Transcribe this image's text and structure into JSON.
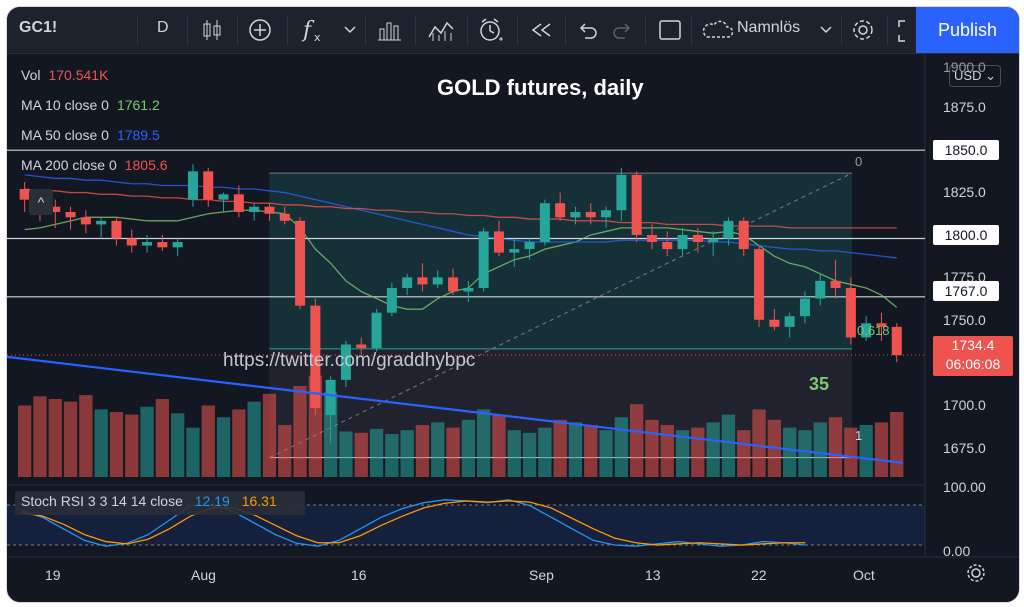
{
  "toolbar": {
    "symbol": "GC1!",
    "interval": "D",
    "layout_name": "Namnlös",
    "publish_label": "Publish",
    "icons": [
      "candles-icon",
      "add-compare-icon",
      "indicators-icon",
      "chevron-down-icon",
      "templates-icon",
      "bar-chart-icon",
      "alert-icon",
      "replay-icon",
      "undo-icon",
      "redo-icon",
      "fullscreen-icon",
      "cloud-icon",
      "settings-icon",
      "screenshot-icon"
    ]
  },
  "legend": {
    "vol": {
      "label": "Vol",
      "value": "170.541K",
      "color": "#ef5350"
    },
    "ma10": {
      "label": "MA 10 close 0",
      "value": "1761.2",
      "color": "#7bc96f"
    },
    "ma50": {
      "label": "MA 50 close 0",
      "value": "1789.5",
      "color": "#2962ff"
    },
    "ma200": {
      "label": "MA 200 close 0",
      "value": "1805.6",
      "color": "#ef5350"
    }
  },
  "title": "GOLD futures, daily",
  "currency": "USD",
  "price_axis": [
    "1900.0",
    "1875.0",
    "1825.0",
    "1775.0",
    "1750.0",
    "1700.0",
    "1675.0"
  ],
  "price_boxes": [
    "1850.0",
    "1800.0",
    "1767.0"
  ],
  "last_price": {
    "value": "1734.4",
    "countdown": "06:06:08"
  },
  "watermark": "https://twitter.com/graddhybpc",
  "count_label": "35",
  "fib": {
    "top": "0",
    "mid": "0.618",
    "bottom": "1"
  },
  "dates": [
    "19",
    "Aug",
    "16",
    "Sep",
    "13",
    "22",
    "Oct"
  ],
  "stoch": {
    "label": "Stoch RSI 3 3 14 14 close",
    "k": "12.19",
    "d": "16.31",
    "axis_top": "100.00",
    "axis_bottom": "0.00"
  },
  "colors": {
    "up": "#26a69a",
    "down": "#ef5350",
    "bg": "#131722",
    "accent": "#2962ff"
  },
  "chart_data": {
    "type": "candlestick",
    "title": "GOLD futures, daily",
    "ylim": [
      1665,
      1905
    ],
    "candles": [
      [
        1828,
        1832,
        1815,
        1822
      ],
      [
        1822,
        1826,
        1810,
        1818
      ],
      [
        1818,
        1822,
        1806,
        1815
      ],
      [
        1815,
        1818,
        1805,
        1812
      ],
      [
        1812,
        1816,
        1803,
        1808
      ],
      [
        1808,
        1812,
        1800,
        1810
      ],
      [
        1810,
        1812,
        1796,
        1800
      ],
      [
        1800,
        1805,
        1792,
        1796
      ],
      [
        1796,
        1802,
        1792,
        1798
      ],
      [
        1798,
        1802,
        1793,
        1795
      ],
      [
        1795,
        1800,
        1790,
        1798
      ],
      [
        1822,
        1842,
        1818,
        1838
      ],
      [
        1838,
        1840,
        1818,
        1822
      ],
      [
        1822,
        1826,
        1815,
        1825
      ],
      [
        1825,
        1830,
        1812,
        1815
      ],
      [
        1815,
        1820,
        1810,
        1818
      ],
      [
        1818,
        1820,
        1810,
        1814
      ],
      [
        1814,
        1818,
        1808,
        1810
      ],
      [
        1810,
        1812,
        1760,
        1762
      ],
      [
        1762,
        1766,
        1700,
        1704
      ],
      [
        1700,
        1722,
        1684,
        1720
      ],
      [
        1720,
        1742,
        1716,
        1740
      ],
      [
        1740,
        1744,
        1734,
        1738
      ],
      [
        1738,
        1760,
        1736,
        1758
      ],
      [
        1758,
        1775,
        1756,
        1772
      ],
      [
        1772,
        1780,
        1768,
        1778
      ],
      [
        1778,
        1786,
        1770,
        1774
      ],
      [
        1774,
        1782,
        1772,
        1778
      ],
      [
        1778,
        1783,
        1768,
        1770
      ],
      [
        1770,
        1776,
        1764,
        1772
      ],
      [
        1772,
        1806,
        1770,
        1804
      ],
      [
        1804,
        1810,
        1790,
        1792
      ],
      [
        1792,
        1800,
        1784,
        1794
      ],
      [
        1794,
        1800,
        1788,
        1798
      ],
      [
        1798,
        1822,
        1796,
        1820
      ],
      [
        1820,
        1826,
        1810,
        1812
      ],
      [
        1812,
        1818,
        1808,
        1815
      ],
      [
        1815,
        1820,
        1808,
        1812
      ],
      [
        1812,
        1818,
        1806,
        1816
      ],
      [
        1816,
        1840,
        1810,
        1836
      ],
      [
        1836,
        1838,
        1798,
        1802
      ],
      [
        1802,
        1808,
        1794,
        1798
      ],
      [
        1798,
        1804,
        1790,
        1794
      ],
      [
        1794,
        1806,
        1790,
        1802
      ],
      [
        1802,
        1806,
        1792,
        1798
      ],
      [
        1798,
        1804,
        1790,
        1800
      ],
      [
        1800,
        1812,
        1796,
        1810
      ],
      [
        1810,
        1812,
        1790,
        1794
      ],
      [
        1794,
        1796,
        1750,
        1754
      ],
      [
        1754,
        1760,
        1748,
        1750
      ],
      [
        1750,
        1758,
        1744,
        1756
      ],
      [
        1756,
        1770,
        1752,
        1766
      ],
      [
        1766,
        1780,
        1762,
        1776
      ],
      [
        1776,
        1788,
        1766,
        1772
      ],
      [
        1772,
        1778,
        1740,
        1744
      ],
      [
        1744,
        1756,
        1742,
        1752
      ],
      [
        1752,
        1758,
        1742,
        1750
      ],
      [
        1750,
        1752,
        1730,
        1734
      ]
    ],
    "volume": [
      55,
      62,
      60,
      58,
      63,
      52,
      50,
      48,
      54,
      60,
      49,
      38,
      55,
      46,
      52,
      58,
      64,
      40,
      70,
      78,
      65,
      35,
      34,
      37,
      33,
      36,
      40,
      42,
      38,
      44,
      52,
      48,
      36,
      34,
      38,
      44,
      42,
      40,
      36,
      46,
      56,
      44,
      40,
      36,
      38,
      42,
      48,
      36,
      52,
      44,
      38,
      36,
      42,
      46,
      38,
      40,
      42,
      50
    ],
    "ma_lines": [
      {
        "name": "MA 10",
        "color": "#7bc96f",
        "values": [
          1805,
          1806,
          1808,
          1810,
          1812,
          1812,
          1812,
          1811,
          1810,
          1810,
          1810,
          1812,
          1814,
          1815,
          1816,
          1816,
          1815,
          1814,
          1806,
          1794,
          1786,
          1776,
          1770,
          1766,
          1762,
          1760,
          1760,
          1766,
          1770,
          1772,
          1780,
          1784,
          1788,
          1790,
          1794,
          1796,
          1798,
          1802,
          1804,
          1806,
          1806,
          1806,
          1806,
          1805,
          1804,
          1803,
          1804,
          1802,
          1796,
          1790,
          1786,
          1784,
          1780,
          1776,
          1774,
          1772,
          1768,
          1761
        ]
      },
      {
        "name": "MA 50",
        "color": "#2962ff",
        "values": [
          1836,
          1835,
          1834,
          1834,
          1833,
          1833,
          1832,
          1831,
          1831,
          1830,
          1830,
          1830,
          1829,
          1829,
          1828,
          1828,
          1827,
          1826,
          1824,
          1822,
          1820,
          1818,
          1816,
          1814,
          1812,
          1810,
          1808,
          1806,
          1804,
          1802,
          1801,
          1800,
          1799,
          1798,
          1798,
          1798,
          1798,
          1798,
          1798,
          1799,
          1799,
          1799,
          1799,
          1799,
          1799,
          1798,
          1798,
          1797,
          1796,
          1795,
          1794,
          1794,
          1793,
          1793,
          1792,
          1791,
          1790,
          1789
        ]
      },
      {
        "name": "MA 200",
        "color": "#ef5350",
        "values": [
          1828,
          1827,
          1827,
          1826,
          1826,
          1825,
          1825,
          1824,
          1824,
          1823,
          1823,
          1822,
          1822,
          1821,
          1821,
          1820,
          1820,
          1819,
          1819,
          1818,
          1818,
          1817,
          1817,
          1816,
          1816,
          1815,
          1815,
          1814,
          1814,
          1813,
          1813,
          1812,
          1812,
          1811,
          1811,
          1811,
          1810,
          1810,
          1810,
          1809,
          1809,
          1809,
          1808,
          1808,
          1808,
          1808,
          1807,
          1807,
          1807,
          1807,
          1806,
          1806,
          1806,
          1806,
          1806,
          1806,
          1806,
          1806
        ]
      }
    ],
    "trendline": {
      "from": [
        0,
        1733
      ],
      "to": [
        57,
        1673
      ]
    },
    "h_levels": [
      1850,
      1800,
      1767
    ],
    "fib_range": {
      "high": 1837,
      "low": 1676
    },
    "stoch_k": [
      72,
      60,
      40,
      20,
      10,
      15,
      30,
      55,
      80,
      82,
      70,
      50,
      30,
      15,
      10,
      20,
      40,
      60,
      75,
      85,
      90,
      88,
      85,
      90,
      80,
      60,
      40,
      20,
      12,
      10,
      14,
      18,
      14,
      10,
      12,
      18,
      16,
      12
    ],
    "stoch_d": [
      68,
      62,
      48,
      30,
      18,
      14,
      22,
      40,
      62,
      76,
      76,
      64,
      46,
      28,
      16,
      16,
      28,
      46,
      62,
      76,
      84,
      88,
      86,
      88,
      86,
      76,
      58,
      40,
      24,
      16,
      12,
      14,
      16,
      14,
      12,
      14,
      16,
      16
    ]
  }
}
